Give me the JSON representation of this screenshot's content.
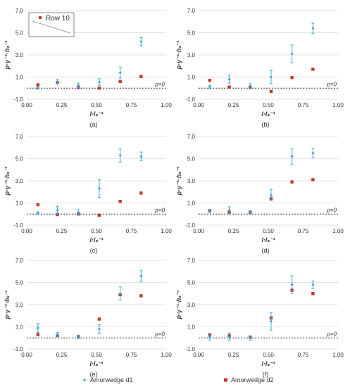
{
  "figure": {
    "inset_label": "Row 10",
    "legend": [
      {
        "label": "Amorwedge d1",
        "color": "#2e9fd6",
        "marker": "diamond"
      },
      {
        "label": "Amorwedge d2",
        "color": "#c0392b",
        "marker": "square"
      }
    ]
  },
  "chart_data": [
    {
      "type": "scatter",
      "panel": "(a)",
      "xlabel": "l·lₛ⁻¹",
      "ylabel": "p·γ⁻¹·hₛ⁻¹",
      "xlim": [
        0,
        1
      ],
      "ylim": [
        -1,
        7
      ],
      "xticks": [
        "0.00",
        "0.25",
        "0.50",
        "0.75",
        "1.00"
      ],
      "yticks": [
        "-1.0",
        "1.0",
        "3.0",
        "5.0",
        "7.0"
      ],
      "reference_line": {
        "y": 0,
        "label": "p=0"
      },
      "grid": "horizontal",
      "series": [
        {
          "name": "Amorwedge d1",
          "x": [
            0.08,
            0.22,
            0.37,
            0.52,
            0.67,
            0.82
          ],
          "y": [
            0.0,
            0.6,
            0.25,
            0.55,
            1.4,
            4.2
          ],
          "err": [
            0.1,
            0.2,
            0.2,
            0.3,
            0.5,
            0.35
          ]
        },
        {
          "name": "Amorwedge d2",
          "x": [
            0.08,
            0.22,
            0.37,
            0.52,
            0.67,
            0.82
          ],
          "y": [
            0.3,
            0.5,
            0.05,
            0.0,
            0.6,
            1.05
          ],
          "err": []
        }
      ]
    },
    {
      "type": "scatter",
      "panel": "(b)",
      "xlabel": "l·lₛ⁻¹",
      "ylabel": "p·γ⁻¹·hₛ⁻¹",
      "xlim": [
        0,
        1
      ],
      "ylim": [
        -1,
        7
      ],
      "xticks": [
        "0.00",
        "0.25",
        "0.50",
        "0.75",
        "1.00"
      ],
      "yticks": [
        "-1.0",
        "1.0",
        "3.0",
        "5.0",
        "7.0"
      ],
      "reference_line": {
        "y": 0,
        "label": "p=0"
      },
      "grid": "horizontal",
      "series": [
        {
          "name": "Amorwedge d1",
          "x": [
            0.08,
            0.22,
            0.37,
            0.52,
            0.67,
            0.82
          ],
          "y": [
            0.1,
            0.8,
            0.2,
            1.0,
            3.1,
            5.4
          ],
          "err": [
            0.15,
            0.35,
            0.2,
            0.6,
            0.8,
            0.45
          ]
        },
        {
          "name": "Amorwedge d2",
          "x": [
            0.08,
            0.22,
            0.37,
            0.52,
            0.67,
            0.82
          ],
          "y": [
            0.7,
            0.1,
            0.05,
            -0.3,
            0.95,
            1.7
          ],
          "err": []
        }
      ]
    },
    {
      "type": "scatter",
      "panel": "(c)",
      "xlabel": "l·lₛ⁻¹",
      "ylabel": "p·γ⁻¹·hₛ⁻¹",
      "xlim": [
        0,
        1
      ],
      "ylim": [
        -1,
        7
      ],
      "xticks": [
        "0.00",
        "0.25",
        "0.50",
        "0.75",
        "1.00"
      ],
      "yticks": [
        "-1.0",
        "1.0",
        "3.0",
        "5.0",
        "7.0"
      ],
      "reference_line": {
        "y": 0,
        "label": "p=0"
      },
      "grid": "horizontal",
      "series": [
        {
          "name": "Amorwedge d1",
          "x": [
            0.08,
            0.22,
            0.37,
            0.52,
            0.67,
            0.82
          ],
          "y": [
            0.1,
            0.35,
            0.15,
            2.3,
            5.3,
            5.2
          ],
          "err": [
            0.1,
            0.35,
            0.25,
            0.8,
            0.6,
            0.4
          ]
        },
        {
          "name": "Amorwedge d2",
          "x": [
            0.08,
            0.22,
            0.37,
            0.52,
            0.67,
            0.82
          ],
          "y": [
            0.85,
            -0.05,
            0.0,
            -0.1,
            1.15,
            1.9
          ],
          "err": []
        }
      ]
    },
    {
      "type": "scatter",
      "panel": "(d)",
      "xlabel": "l·lₛ⁻¹",
      "ylabel": "p·γ⁻¹·hₛ⁻¹",
      "xlim": [
        0,
        1
      ],
      "ylim": [
        -1,
        7
      ],
      "xticks": [
        "0.00",
        "0.25",
        "0.50",
        "0.75",
        "1.00"
      ],
      "yticks": [
        "-1.0",
        "1.0",
        "3.0",
        "5.0",
        "7.0"
      ],
      "reference_line": {
        "y": 0,
        "label": "p=0"
      },
      "grid": "horizontal",
      "series": [
        {
          "name": "Amorwedge d1",
          "x": [
            0.08,
            0.22,
            0.37,
            0.52,
            0.67,
            0.82
          ],
          "y": [
            0.25,
            0.35,
            0.15,
            1.7,
            5.2,
            5.5
          ],
          "err": [
            0.1,
            0.3,
            0.15,
            0.5,
            0.7,
            0.4
          ]
        },
        {
          "name": "Amorwedge d2",
          "x": [
            0.08,
            0.22,
            0.37,
            0.52,
            0.67,
            0.82
          ],
          "y": [
            0.3,
            0.15,
            0.15,
            1.4,
            2.9,
            3.1
          ],
          "err": []
        }
      ]
    },
    {
      "type": "scatter",
      "panel": "(e)",
      "xlabel": "l·lₛ⁻¹",
      "ylabel": "p·γ⁻¹·hₛ⁻¹",
      "xlim": [
        0,
        1
      ],
      "ylim": [
        -1,
        7
      ],
      "xticks": [
        "0.00",
        "0.25",
        "0.50",
        "0.75",
        "1.00"
      ],
      "yticks": [
        "-1.0",
        "1.0",
        "3.0",
        "5.0",
        "7.0"
      ],
      "reference_line": {
        "y": 0,
        "label": "p=0"
      },
      "grid": "horizontal",
      "series": [
        {
          "name": "Amorwedge d1",
          "x": [
            0.08,
            0.22,
            0.37,
            0.52,
            0.67,
            0.82
          ],
          "y": [
            0.9,
            0.3,
            0.1,
            0.8,
            4.0,
            5.6
          ],
          "err": [
            0.4,
            0.2,
            0.15,
            0.4,
            0.6,
            0.5
          ]
        },
        {
          "name": "Amorwedge d2",
          "x": [
            0.08,
            0.22,
            0.37,
            0.52,
            0.67,
            0.82
          ],
          "y": [
            0.3,
            0.2,
            0.1,
            1.7,
            3.9,
            3.8
          ],
          "err": []
        }
      ]
    },
    {
      "type": "scatter",
      "panel": "(f)",
      "xlabel": "l·lₛ⁻¹",
      "ylabel": "p·γ⁻¹·hₛ⁻¹",
      "xlim": [
        0,
        1
      ],
      "ylim": [
        -1,
        7
      ],
      "xticks": [
        "0.00",
        "0.25",
        "0.50",
        "0.75",
        "1.00"
      ],
      "yticks": [
        "-1.0",
        "1.0",
        "3.0",
        "5.0",
        "7.0"
      ],
      "reference_line": {
        "y": 0,
        "label": "p=0"
      },
      "grid": "horizontal",
      "series": [
        {
          "name": "Amorwedge d1",
          "x": [
            0.08,
            0.22,
            0.37,
            0.52,
            0.67,
            0.82
          ],
          "y": [
            0.1,
            0.1,
            0.0,
            1.5,
            4.8,
            4.8
          ],
          "err": [
            0.3,
            0.35,
            0.2,
            0.8,
            0.8,
            0.35
          ]
        },
        {
          "name": "Amorwedge d2",
          "x": [
            0.08,
            0.22,
            0.37,
            0.52,
            0.67,
            0.82
          ],
          "y": [
            0.3,
            0.2,
            0.05,
            1.8,
            4.3,
            4.0
          ],
          "err": []
        }
      ]
    }
  ]
}
